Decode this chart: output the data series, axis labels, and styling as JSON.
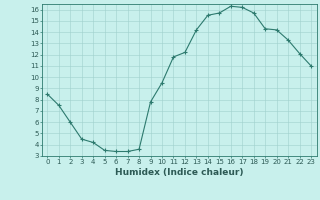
{
  "x": [
    0,
    1,
    2,
    3,
    4,
    5,
    6,
    7,
    8,
    9,
    10,
    11,
    12,
    13,
    14,
    15,
    16,
    17,
    18,
    19,
    20,
    21,
    22,
    23
  ],
  "y": [
    8.5,
    7.5,
    6.0,
    4.5,
    4.2,
    3.5,
    3.4,
    3.4,
    3.6,
    7.8,
    9.5,
    11.8,
    12.2,
    14.2,
    15.5,
    15.7,
    16.3,
    16.2,
    15.7,
    14.3,
    14.2,
    13.3,
    12.1,
    11.0
  ],
  "xlabel": "Humidex (Indice chaleur)",
  "line_color": "#2d7a6e",
  "marker": "+",
  "marker_size": 3,
  "bg_color": "#c8f0ec",
  "grid_color": "#a0d0cc",
  "xlim": [
    -0.5,
    23.5
  ],
  "ylim": [
    3,
    16.5
  ],
  "yticks": [
    3,
    4,
    5,
    6,
    7,
    8,
    9,
    10,
    11,
    12,
    13,
    14,
    15,
    16
  ],
  "xticks": [
    0,
    1,
    2,
    3,
    4,
    5,
    6,
    7,
    8,
    9,
    10,
    11,
    12,
    13,
    14,
    15,
    16,
    17,
    18,
    19,
    20,
    21,
    22,
    23
  ],
  "tick_fontsize": 5,
  "xlabel_fontsize": 6.5,
  "axis_color": "#2d7a6e",
  "linewidth": 0.8,
  "markeredgewidth": 0.8
}
